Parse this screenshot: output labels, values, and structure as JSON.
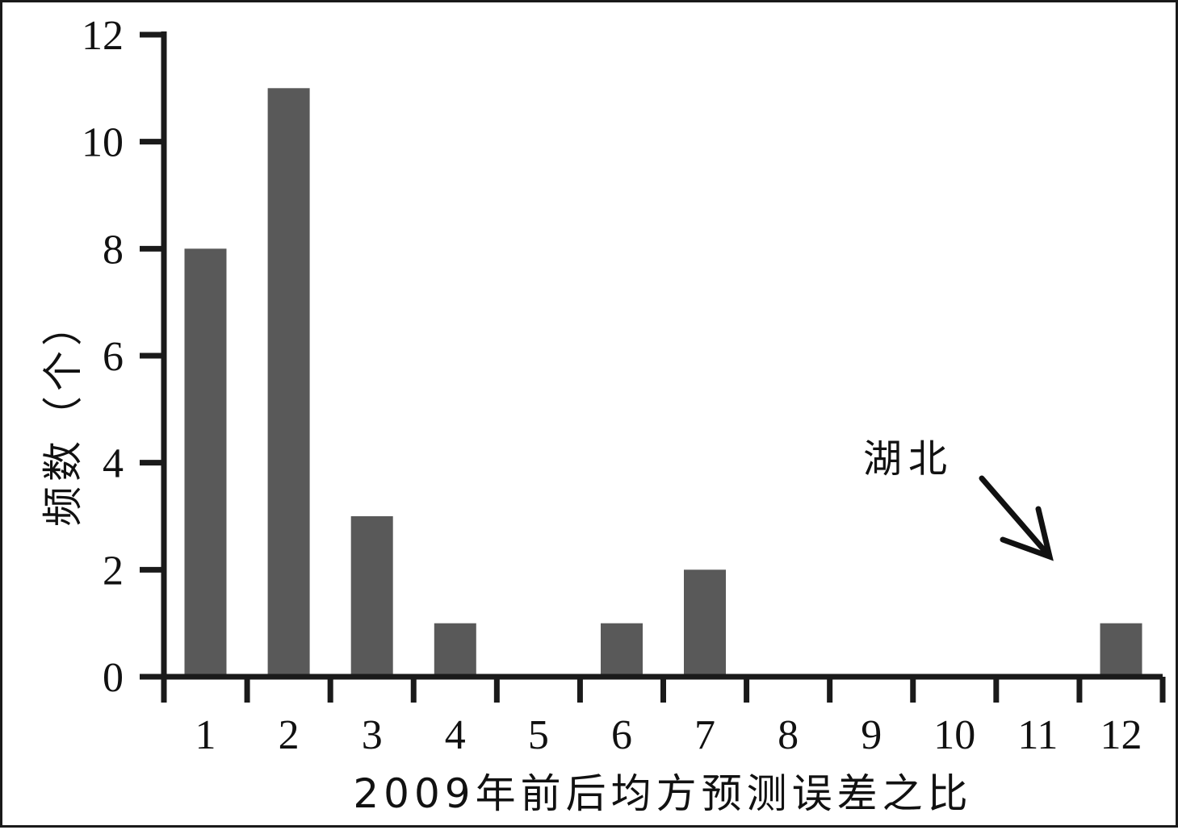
{
  "chart_data": {
    "type": "bar",
    "categories": [
      "1",
      "2",
      "3",
      "4",
      "5",
      "6",
      "7",
      "8",
      "9",
      "10",
      "11",
      "12"
    ],
    "values": [
      8,
      11,
      3,
      1,
      0,
      1,
      2,
      0,
      0,
      0,
      0,
      1
    ],
    "xlabel": "2009年前后均方预测误差之比",
    "ylabel": "频数（个）",
    "ylim": [
      0,
      12
    ],
    "yticks": [
      0,
      2,
      4,
      6,
      8,
      10,
      12
    ],
    "grid": false,
    "legend": "none",
    "bar_color": "#595959",
    "axis_color": "#1a1a1a",
    "annotations": [
      {
        "text": "湖北",
        "target_category": "12"
      }
    ]
  }
}
